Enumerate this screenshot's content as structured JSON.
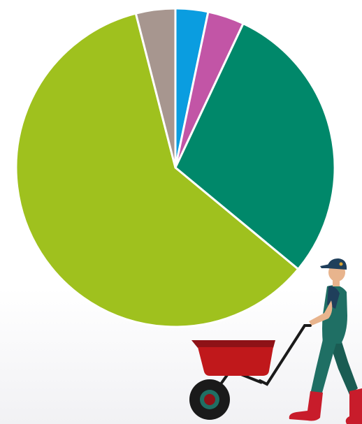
{
  "chart_data": {
    "type": "pie",
    "title": "",
    "legend": "none",
    "slices": [
      {
        "value": 3.3,
        "color": "#0a9de0"
      },
      {
        "value": 3.7,
        "color": "#c255a6"
      },
      {
        "value": 29.0,
        "color": "#00886a"
      },
      {
        "value": 60.0,
        "color": "#9fc11e"
      },
      {
        "value": 4.0,
        "color": "#a7968f"
      }
    ]
  },
  "illustration": {
    "subject": "gardener-pushing-wheelbarrow",
    "colors": {
      "wheelbarrow_tray": "#c0181b",
      "overalls": "#1f6f64",
      "boots": "#c81c2b",
      "cap": "#1f3f5b"
    }
  }
}
